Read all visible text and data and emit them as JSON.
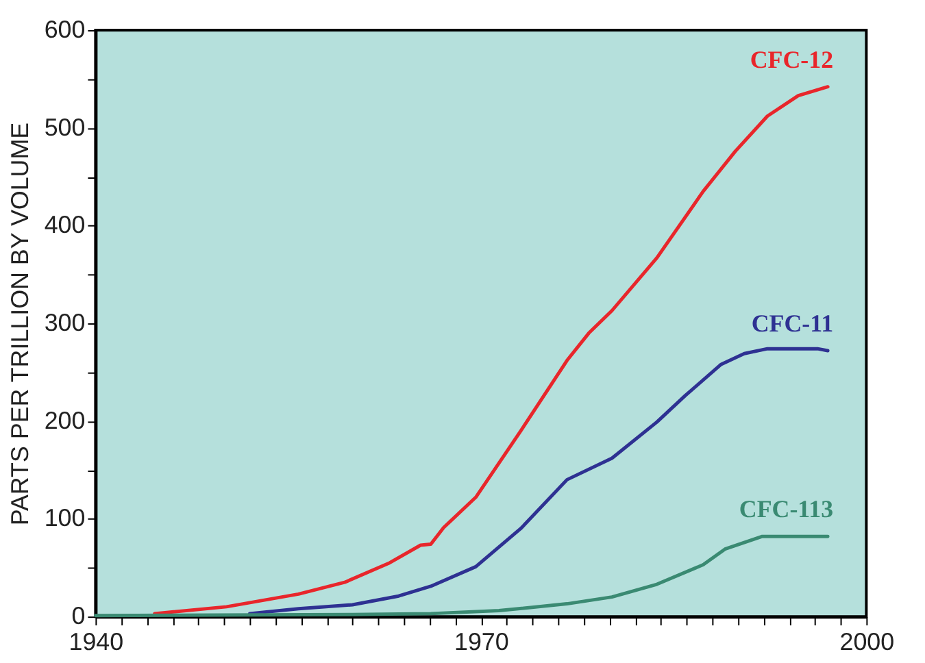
{
  "chart_data": {
    "type": "line",
    "ylabel": "PARTS PER TRILLION BY VOLUME",
    "xlim": [
      1940,
      2000
    ],
    "ylim": [
      0,
      600
    ],
    "xticks": [
      1940,
      {
        "value": 1942,
        "label": null
      },
      {
        "value": 1944,
        "label": null
      },
      {
        "value": 1946,
        "label": null
      },
      {
        "value": 1948,
        "label": null
      },
      {
        "value": 1950,
        "label": null
      },
      {
        "value": 1952,
        "label": null
      },
      {
        "value": 1954,
        "label": null
      },
      {
        "value": 1956,
        "label": null
      },
      {
        "value": 1958,
        "label": null
      },
      {
        "value": 1960,
        "label": null
      },
      {
        "value": 1962,
        "label": null
      },
      {
        "value": 1964,
        "label": null
      },
      {
        "value": 1966,
        "label": null
      },
      {
        "value": 1968,
        "label": null
      },
      1970,
      {
        "value": 1972,
        "label": null
      },
      {
        "value": 1974,
        "label": null
      },
      {
        "value": 1976,
        "label": null
      },
      {
        "value": 1978,
        "label": null
      },
      {
        "value": 1980,
        "label": null
      },
      {
        "value": 1982,
        "label": null
      },
      {
        "value": 1984,
        "label": null
      },
      {
        "value": 1986,
        "label": null
      },
      {
        "value": 1988,
        "label": null
      },
      {
        "value": 1990,
        "label": null
      },
      {
        "value": 1992,
        "label": null
      },
      {
        "value": 1994,
        "label": null
      },
      {
        "value": 1996,
        "label": null
      },
      {
        "value": 1998,
        "label": null
      },
      2000
    ],
    "yticks": [
      0,
      {
        "value": 50,
        "label": null
      },
      100,
      {
        "value": 150,
        "label": null
      },
      200,
      {
        "value": 250,
        "label": null
      },
      300,
      {
        "value": 350,
        "label": null
      },
      400,
      {
        "value": 450,
        "label": null
      },
      500,
      {
        "value": 550,
        "label": null
      },
      600
    ],
    "grid": false,
    "legend": false,
    "marker": "none",
    "line_style": "solid",
    "series": [
      {
        "name": "CFC-12",
        "color": "#e8262b",
        "x": [
          1944.6,
          1950.2,
          1955.8,
          1959.4,
          1962.9,
          1965.3,
          1966.1,
          1967.1,
          1969.6,
          1973.1,
          1976.7,
          1978.4,
          1980.2,
          1983.7,
          1987.3,
          1989.8,
          1992.3,
          1994.7,
          1997.0
        ],
        "values": [
          3,
          10,
          23,
          35,
          55,
          73,
          74,
          91,
          122,
          190,
          262,
          290,
          313,
          367,
          435,
          476,
          512,
          533,
          542
        ]
      },
      {
        "name": "CFC-11",
        "color": "#2e3192",
        "x": [
          1952.0,
          1955.8,
          1960.0,
          1963.6,
          1966.1,
          1969.6,
          1973.1,
          1976.7,
          1980.2,
          1983.7,
          1985.9,
          1988.7,
          1990.5,
          1992.3,
          1996.2,
          1997.0
        ],
        "values": [
          3,
          8,
          12,
          21,
          31,
          51,
          90,
          140,
          162,
          199,
          226,
          258,
          269,
          274,
          274,
          272
        ]
      },
      {
        "name": "CFC-113",
        "color": "#3a8a72",
        "x": [
          1940.0,
          1960.0,
          1966.1,
          1971.4,
          1976.7,
          1980.2,
          1983.7,
          1987.3,
          1989.0,
          1991.9,
          1997.0
        ],
        "values": [
          1,
          2,
          3,
          6,
          13,
          20,
          33,
          53,
          69,
          82,
          82
        ]
      }
    ]
  }
}
